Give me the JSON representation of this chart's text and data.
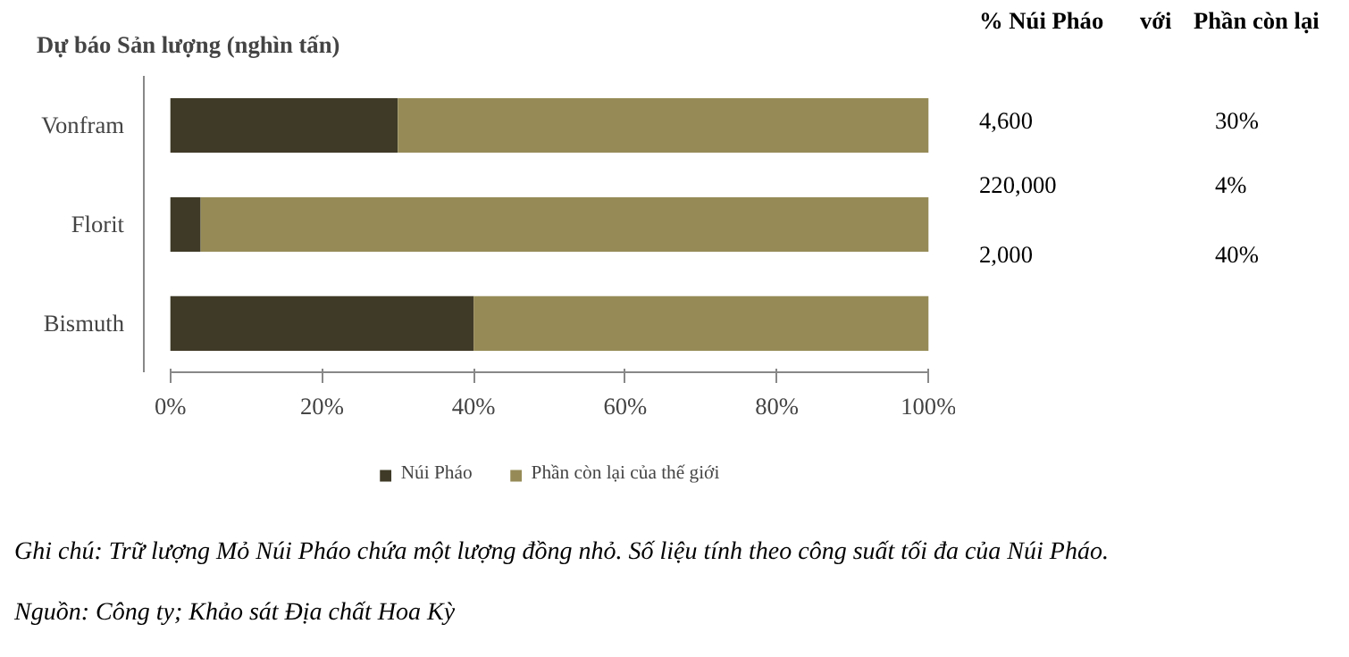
{
  "chart_data": {
    "type": "bar",
    "orientation": "horizontal",
    "stacked": true,
    "title": "Dự báo Sản lượng (nghìn tấn)",
    "categories": [
      "Vonfram",
      "Florit",
      "Bismuth"
    ],
    "series": [
      {
        "name": "Núi Pháo",
        "color": "#3f3a27",
        "values": [
          30,
          4,
          40
        ]
      },
      {
        "name": "Phần còn lại của thế giới",
        "color": "#968b57",
        "values": [
          70,
          96,
          60
        ]
      }
    ],
    "xlim": [
      0,
      100
    ],
    "xticks": [
      {
        "value": 0,
        "label": "0%"
      },
      {
        "value": 20,
        "label": "20%"
      },
      {
        "value": 40,
        "label": "40%"
      },
      {
        "value": 60,
        "label": "60%"
      },
      {
        "value": 80,
        "label": "80%"
      },
      {
        "value": 100,
        "label": "100%"
      }
    ],
    "grid": false,
    "legend": "bottom",
    "annotations": [
      "% Núi Pháo",
      "với",
      "Phần còn lại",
      "4,600",
      "30%",
      "220,000",
      "4%",
      "2,000",
      "40%",
      "Ghi chú: Trữ lượng Mỏ Núi Pháo chứa một lượng đồng nhỏ. Số liệu tính theo công suất tối đa của Núi Pháo.",
      "Nguồn: Công ty; Khảo sát Địa chất Hoa Kỳ"
    ]
  }
}
